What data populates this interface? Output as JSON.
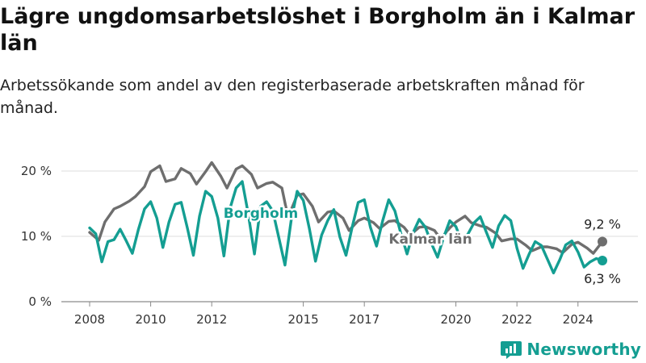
{
  "header": {
    "title": "Lägre ungdomsarbetslöshet i Borgholm än i Kalmar län",
    "subtitle": "Arbetssökande som andel av den registerbaserade arbetskraften månad för månad."
  },
  "brand": {
    "name": "Newsworthy",
    "icon": "bar-chart-icon",
    "color": "#149e92"
  },
  "chart_data": {
    "type": "line",
    "x_ticks": [
      "2008",
      "2010",
      "2012",
      "2015",
      "2017",
      "2020",
      "2022",
      "2024"
    ],
    "y_ticks": [
      "0 %",
      "10 %",
      "20 %"
    ],
    "ylim": [
      0,
      22
    ],
    "grid": true,
    "series": [
      {
        "name": "Kalmar län",
        "color": "#6e6e6e",
        "end_label": "9,2 %",
        "points": [
          [
            2008.0,
            10.6
          ],
          [
            2008.3,
            9.4
          ],
          [
            2008.5,
            12.2
          ],
          [
            2008.8,
            14.2
          ],
          [
            2009.0,
            14.6
          ],
          [
            2009.3,
            15.4
          ],
          [
            2009.5,
            16.1
          ],
          [
            2009.8,
            17.6
          ],
          [
            2010.0,
            19.9
          ],
          [
            2010.3,
            20.8
          ],
          [
            2010.5,
            18.4
          ],
          [
            2010.8,
            18.8
          ],
          [
            2011.0,
            20.4
          ],
          [
            2011.3,
            19.6
          ],
          [
            2011.5,
            18.0
          ],
          [
            2011.8,
            19.9
          ],
          [
            2012.0,
            21.3
          ],
          [
            2012.3,
            19.2
          ],
          [
            2012.5,
            17.4
          ],
          [
            2012.8,
            20.3
          ],
          [
            2013.0,
            20.8
          ],
          [
            2013.3,
            19.5
          ],
          [
            2013.5,
            17.4
          ],
          [
            2013.8,
            18.1
          ],
          [
            2014.0,
            18.3
          ],
          [
            2014.3,
            17.4
          ],
          [
            2014.5,
            12.9
          ],
          [
            2014.8,
            16.3
          ],
          [
            2015.0,
            16.5
          ],
          [
            2015.3,
            14.6
          ],
          [
            2015.5,
            12.2
          ],
          [
            2015.8,
            13.7
          ],
          [
            2016.0,
            13.9
          ],
          [
            2016.3,
            12.8
          ],
          [
            2016.5,
            10.9
          ],
          [
            2016.8,
            12.4
          ],
          [
            2017.0,
            12.8
          ],
          [
            2017.3,
            12.1
          ],
          [
            2017.5,
            11.2
          ],
          [
            2017.8,
            12.3
          ],
          [
            2018.0,
            12.4
          ],
          [
            2018.3,
            11.4
          ],
          [
            2018.5,
            10.2
          ],
          [
            2018.8,
            11.4
          ],
          [
            2019.0,
            11.5
          ],
          [
            2019.3,
            10.9
          ],
          [
            2019.5,
            9.6
          ],
          [
            2019.8,
            11.3
          ],
          [
            2020.0,
            12.2
          ],
          [
            2020.3,
            13.1
          ],
          [
            2020.5,
            12.1
          ],
          [
            2020.8,
            11.6
          ],
          [
            2021.0,
            11.4
          ],
          [
            2021.3,
            10.5
          ],
          [
            2021.5,
            9.3
          ],
          [
            2021.8,
            9.6
          ],
          [
            2022.0,
            9.6
          ],
          [
            2022.3,
            8.6
          ],
          [
            2022.5,
            7.8
          ],
          [
            2022.8,
            8.4
          ],
          [
            2023.0,
            8.4
          ],
          [
            2023.3,
            8.1
          ],
          [
            2023.5,
            7.5
          ],
          [
            2023.8,
            8.8
          ],
          [
            2024.0,
            9.1
          ],
          [
            2024.3,
            8.2
          ],
          [
            2024.5,
            7.4
          ],
          [
            2024.8,
            9.2
          ]
        ]
      },
      {
        "name": "Borgholm",
        "color": "#149e92",
        "end_label": "6,3 %",
        "points": [
          [
            2008.0,
            11.3
          ],
          [
            2008.2,
            10.4
          ],
          [
            2008.4,
            6.1
          ],
          [
            2008.6,
            9.2
          ],
          [
            2008.8,
            9.5
          ],
          [
            2009.0,
            11.1
          ],
          [
            2009.2,
            9.3
          ],
          [
            2009.4,
            7.4
          ],
          [
            2009.6,
            11.1
          ],
          [
            2009.8,
            14.2
          ],
          [
            2010.0,
            15.3
          ],
          [
            2010.2,
            12.8
          ],
          [
            2010.4,
            8.3
          ],
          [
            2010.6,
            12.2
          ],
          [
            2010.8,
            14.9
          ],
          [
            2011.0,
            15.2
          ],
          [
            2011.2,
            11.3
          ],
          [
            2011.4,
            7.1
          ],
          [
            2011.6,
            13.1
          ],
          [
            2011.8,
            16.9
          ],
          [
            2012.0,
            16.1
          ],
          [
            2012.2,
            12.8
          ],
          [
            2012.4,
            7.0
          ],
          [
            2012.6,
            14.3
          ],
          [
            2012.8,
            17.4
          ],
          [
            2013.0,
            18.4
          ],
          [
            2013.2,
            13.4
          ],
          [
            2013.4,
            7.3
          ],
          [
            2013.6,
            14.6
          ],
          [
            2013.8,
            15.3
          ],
          [
            2014.0,
            13.9
          ],
          [
            2014.2,
            9.8
          ],
          [
            2014.4,
            5.6
          ],
          [
            2014.6,
            12.4
          ],
          [
            2014.8,
            16.9
          ],
          [
            2015.0,
            15.5
          ],
          [
            2015.2,
            11.2
          ],
          [
            2015.4,
            6.2
          ],
          [
            2015.6,
            10.2
          ],
          [
            2015.8,
            12.4
          ],
          [
            2016.0,
            14.1
          ],
          [
            2016.2,
            9.9
          ],
          [
            2016.4,
            7.1
          ],
          [
            2016.6,
            11.4
          ],
          [
            2016.8,
            15.2
          ],
          [
            2017.0,
            15.6
          ],
          [
            2017.2,
            11.4
          ],
          [
            2017.4,
            8.5
          ],
          [
            2017.6,
            12.4
          ],
          [
            2017.8,
            15.6
          ],
          [
            2018.0,
            13.9
          ],
          [
            2018.2,
            10.4
          ],
          [
            2018.4,
            7.3
          ],
          [
            2018.6,
            10.6
          ],
          [
            2018.8,
            12.6
          ],
          [
            2019.0,
            11.4
          ],
          [
            2019.2,
            8.9
          ],
          [
            2019.4,
            6.8
          ],
          [
            2019.6,
            9.9
          ],
          [
            2019.8,
            12.4
          ],
          [
            2020.0,
            11.5
          ],
          [
            2020.2,
            9.1
          ],
          [
            2020.4,
            10.4
          ],
          [
            2020.6,
            12.1
          ],
          [
            2020.8,
            13.0
          ],
          [
            2021.0,
            10.6
          ],
          [
            2021.2,
            8.3
          ],
          [
            2021.4,
            11.6
          ],
          [
            2021.6,
            13.2
          ],
          [
            2021.8,
            12.4
          ],
          [
            2022.0,
            8.2
          ],
          [
            2022.2,
            5.1
          ],
          [
            2022.4,
            7.3
          ],
          [
            2022.6,
            9.2
          ],
          [
            2022.8,
            8.6
          ],
          [
            2023.0,
            6.5
          ],
          [
            2023.2,
            4.4
          ],
          [
            2023.4,
            6.4
          ],
          [
            2023.6,
            8.7
          ],
          [
            2023.8,
            9.3
          ],
          [
            2024.0,
            7.6
          ],
          [
            2024.2,
            5.3
          ],
          [
            2024.4,
            6.1
          ],
          [
            2024.6,
            6.6
          ],
          [
            2024.8,
            6.3
          ]
        ]
      }
    ]
  }
}
